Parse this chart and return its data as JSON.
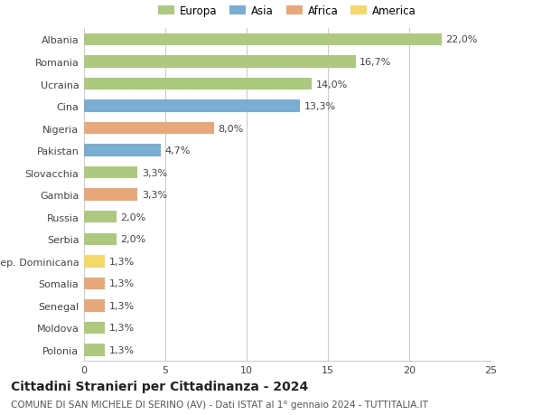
{
  "countries": [
    "Albania",
    "Romania",
    "Ucraina",
    "Cina",
    "Nigeria",
    "Pakistan",
    "Slovacchia",
    "Gambia",
    "Russia",
    "Serbia",
    "Rep. Dominicana",
    "Somalia",
    "Senegal",
    "Moldova",
    "Polonia"
  ],
  "values": [
    22.0,
    16.7,
    14.0,
    13.3,
    8.0,
    4.7,
    3.3,
    3.3,
    2.0,
    2.0,
    1.3,
    1.3,
    1.3,
    1.3,
    1.3
  ],
  "labels": [
    "22,0%",
    "16,7%",
    "14,0%",
    "13,3%",
    "8,0%",
    "4,7%",
    "3,3%",
    "3,3%",
    "2,0%",
    "2,0%",
    "1,3%",
    "1,3%",
    "1,3%",
    "1,3%",
    "1,3%"
  ],
  "continents": [
    "Europa",
    "Europa",
    "Europa",
    "Asia",
    "Africa",
    "Asia",
    "Europa",
    "Africa",
    "Europa",
    "Europa",
    "America",
    "Africa",
    "Africa",
    "Europa",
    "Europa"
  ],
  "colors": {
    "Europa": "#adc97e",
    "Asia": "#7aadd4",
    "Africa": "#e8a87a",
    "America": "#f5d76a"
  },
  "legend_labels": [
    "Europa",
    "Asia",
    "Africa",
    "America"
  ],
  "title": "Cittadini Stranieri per Cittadinanza - 2024",
  "subtitle": "COMUNE DI SAN MICHELE DI SERINO (AV) - Dati ISTAT al 1° gennaio 2024 - TUTTITALIA.IT",
  "xlim": [
    0,
    25
  ],
  "xticks": [
    0,
    5,
    10,
    15,
    20,
    25
  ],
  "background_color": "#ffffff",
  "grid_color": "#cccccc",
  "bar_height": 0.55,
  "title_fontsize": 10,
  "subtitle_fontsize": 7.5,
  "tick_fontsize": 8,
  "label_fontsize": 8,
  "legend_fontsize": 8.5
}
